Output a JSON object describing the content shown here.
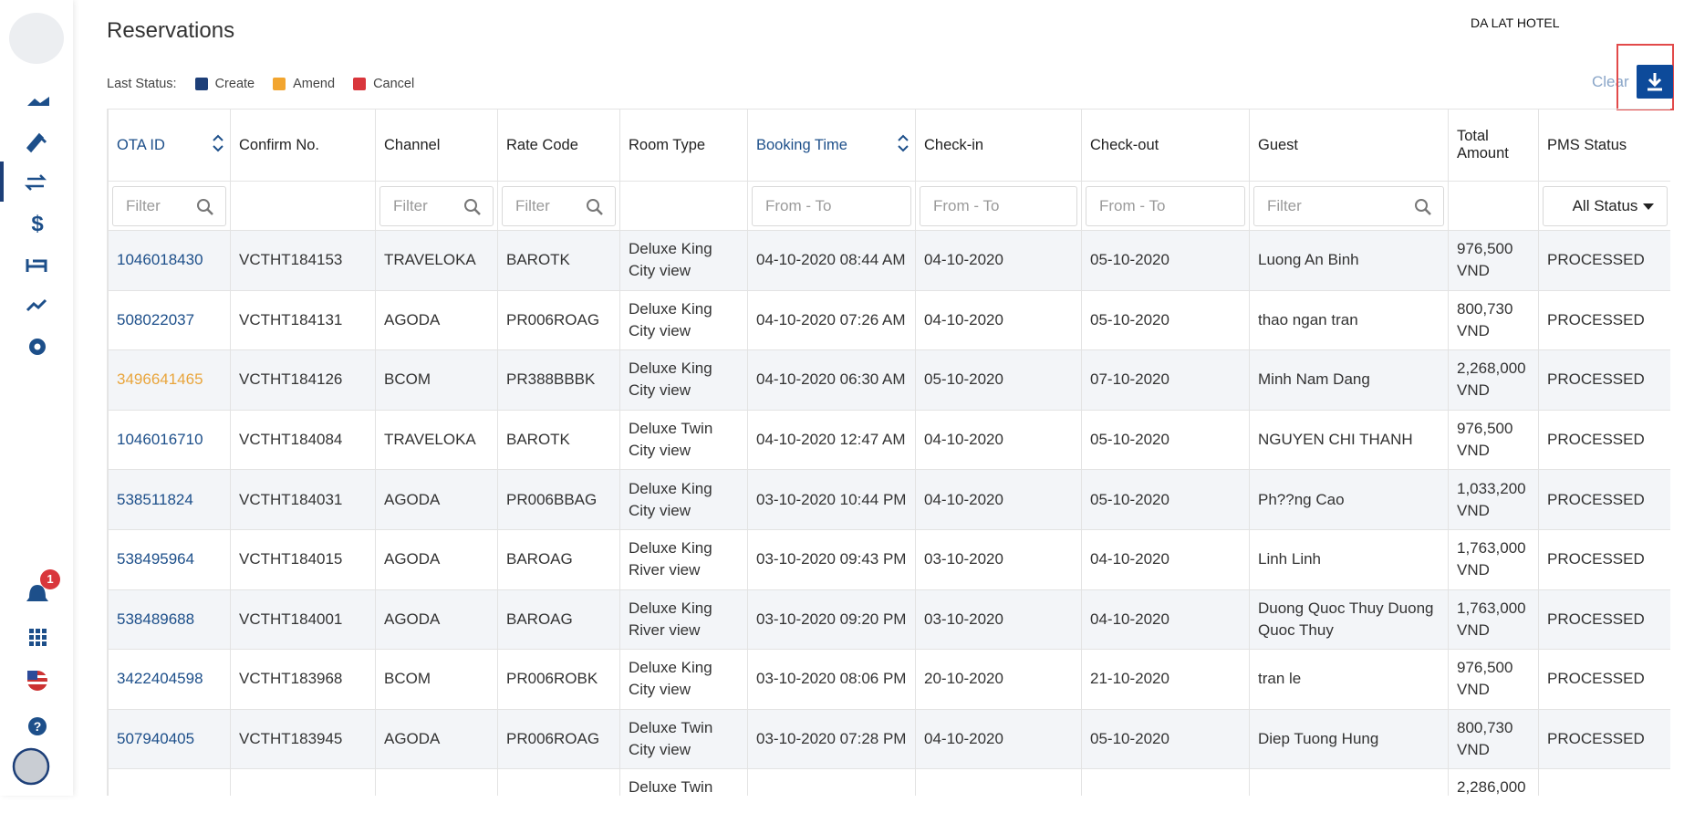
{
  "header": {
    "title": "Reservations",
    "hotel": "DA LAT HOTEL",
    "clear": "Clear",
    "notification_count": "1"
  },
  "legend": {
    "label": "Last Status:",
    "items": [
      {
        "name": "Create",
        "color": "#1d3f78"
      },
      {
        "name": "Amend",
        "color": "#f2a52f"
      },
      {
        "name": "Cancel",
        "color": "#d9363c"
      }
    ]
  },
  "table": {
    "columns": [
      {
        "label": "OTA ID",
        "sortable": true
      },
      {
        "label": "Confirm No.",
        "sortable": false
      },
      {
        "label": "Channel",
        "sortable": false
      },
      {
        "label": "Rate Code",
        "sortable": false
      },
      {
        "label": "Room Type",
        "sortable": false
      },
      {
        "label": "Booking Time",
        "sortable": true
      },
      {
        "label": "Check-in",
        "sortable": false
      },
      {
        "label": "Check-out",
        "sortable": false
      },
      {
        "label": "Guest",
        "sortable": false
      },
      {
        "label": "Total Amount",
        "sortable": false
      },
      {
        "label": "PMS Status",
        "sortable": false
      }
    ],
    "filters": [
      "Filter",
      null,
      "Filter",
      "Filter",
      null,
      "From - To",
      "From - To",
      "From - To",
      "Filter",
      null,
      "All Status"
    ],
    "rows": [
      {
        "color": "#1d4f8a",
        "cells": [
          "1046018430",
          "VCTHT184153",
          "TRAVELOKA",
          "BAROTK",
          "Deluxe King City view",
          "04-10-2020 08:44 AM",
          "04-10-2020",
          "05-10-2020",
          "Luong An Binh",
          "976,500 VND",
          "PROCESSED"
        ]
      },
      {
        "color": "#1d4f8a",
        "cells": [
          "508022037",
          "VCTHT184131",
          "AGODA",
          "PR006ROAG",
          "Deluxe King City view",
          "04-10-2020 07:26 AM",
          "04-10-2020",
          "05-10-2020",
          "thao ngan tran",
          "800,730 VND",
          "PROCESSED"
        ]
      },
      {
        "color": "#e9a53c",
        "cells": [
          "3496641465",
          "VCTHT184126",
          "BCOM",
          "PR388BBBK",
          "Deluxe King City view",
          "04-10-2020 06:30 AM",
          "05-10-2020",
          "07-10-2020",
          "Minh Nam Dang",
          "2,268,000 VND",
          "PROCESSED"
        ]
      },
      {
        "color": "#1d4f8a",
        "cells": [
          "1046016710",
          "VCTHT184084",
          "TRAVELOKA",
          "BAROTK",
          "Deluxe Twin City view",
          "04-10-2020 12:47 AM",
          "04-10-2020",
          "05-10-2020",
          "NGUYEN CHI THANH",
          "976,500 VND",
          "PROCESSED"
        ]
      },
      {
        "color": "#1d4f8a",
        "cells": [
          "538511824",
          "VCTHT184031",
          "AGODA",
          "PR006BBAG",
          "Deluxe King City view",
          "03-10-2020 10:44 PM",
          "04-10-2020",
          "05-10-2020",
          "Ph??ng Cao",
          "1,033,200 VND",
          "PROCESSED"
        ]
      },
      {
        "color": "#1d4f8a",
        "cells": [
          "538495964",
          "VCTHT184015",
          "AGODA",
          "BAROAG",
          "Deluxe King River view",
          "03-10-2020 09:43 PM",
          "03-10-2020",
          "04-10-2020",
          "Linh Linh",
          "1,763,000 VND",
          "PROCESSED"
        ]
      },
      {
        "color": "#1d4f8a",
        "cells": [
          "538489688",
          "VCTHT184001",
          "AGODA",
          "BAROAG",
          "Deluxe King River view",
          "03-10-2020 09:20 PM",
          "03-10-2020",
          "04-10-2020",
          "Duong Quoc Thuy Duong Quoc Thuy",
          "1,763,000 VND",
          "PROCESSED"
        ]
      },
      {
        "color": "#1d4f8a",
        "cells": [
          "3422404598",
          "VCTHT183968",
          "BCOM",
          "PR006ROBK",
          "Deluxe King City view",
          "03-10-2020 08:06 PM",
          "20-10-2020",
          "21-10-2020",
          "tran le",
          "976,500 VND",
          "PROCESSED"
        ]
      },
      {
        "color": "#1d4f8a",
        "cells": [
          "507940405",
          "VCTHT183945",
          "AGODA",
          "PR006ROAG",
          "Deluxe Twin City view",
          "03-10-2020 07:28 PM",
          "04-10-2020",
          "05-10-2020",
          "Diep Tuong Hung",
          "800,730 VND",
          "PROCESSED"
        ]
      }
    ],
    "partial_row": {
      "room_type": "Deluxe Twin",
      "total_amount": "2,286,000"
    }
  }
}
